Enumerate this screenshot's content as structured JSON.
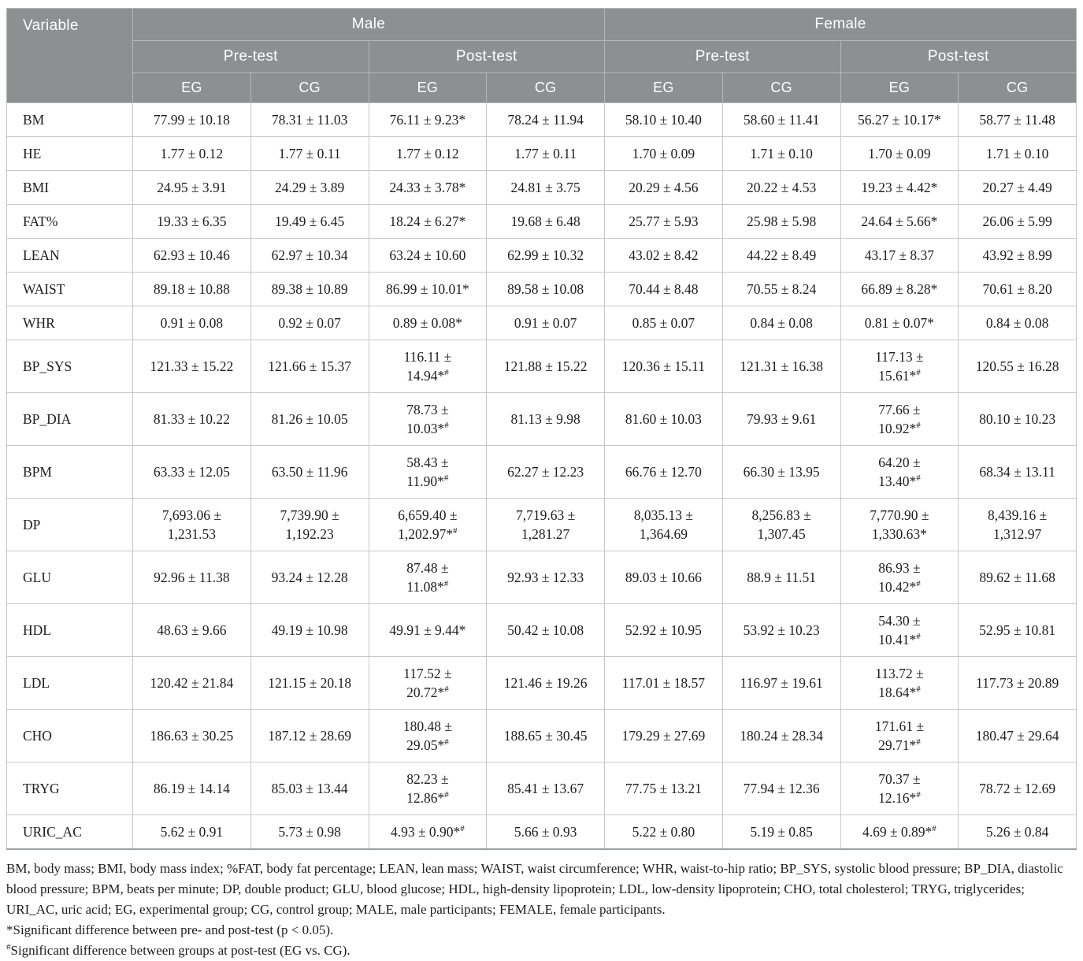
{
  "colors": {
    "header_bg": "#8c9091",
    "header_text": "#ffffff",
    "header_grid": "#b3b8b8",
    "grid_line": "#c6c8c8",
    "outer_line": "#9da0a0",
    "body_text": "#1d1d1d"
  },
  "table": {
    "header": {
      "variable_label": "Variable",
      "groups": [
        "Male",
        "Female"
      ],
      "subgroups": [
        "Pre-test",
        "Post-test"
      ],
      "columns": [
        "EG",
        "CG"
      ]
    },
    "rows": [
      {
        "label": "BM",
        "values": [
          "77.99 ± 10.18",
          "78.31 ± 11.03",
          "76.11 ± 9.23*",
          "78.24 ± 11.94",
          "58.10 ± 10.40",
          "58.60 ± 11.41",
          "56.27 ± 10.17*",
          "58.77 ± 11.48"
        ]
      },
      {
        "label": "HE",
        "values": [
          "1.77 ± 0.12",
          "1.77 ± 0.11",
          "1.77 ± 0.12",
          "1.77 ± 0.11",
          "1.70 ± 0.09",
          "1.71 ± 0.10",
          "1.70 ± 0.09",
          "1.71 ± 0.10"
        ]
      },
      {
        "label": "BMI",
        "values": [
          "24.95 ± 3.91",
          "24.29 ± 3.89",
          "24.33 ± 3.78*",
          "24.81 ± 3.75",
          "20.29 ± 4.56",
          "20.22 ± 4.53",
          "19.23 ± 4.42*",
          "20.27 ± 4.49"
        ]
      },
      {
        "label": "FAT%",
        "values": [
          "19.33 ± 6.35",
          "19.49 ± 6.45",
          "18.24 ± 6.27*",
          "19.68 ± 6.48",
          "25.77 ± 5.93",
          "25.98 ± 5.98",
          "24.64 ± 5.66*",
          "26.06 ± 5.99"
        ]
      },
      {
        "label": "LEAN",
        "values": [
          "62.93 ± 10.46",
          "62.97 ± 10.34",
          "63.24 ± 10.60",
          "62.99 ± 10.32",
          "43.02 ± 8.42",
          "44.22 ± 8.49",
          "43.17 ± 8.37",
          "43.92 ± 8.99"
        ]
      },
      {
        "label": "WAIST",
        "values": [
          "89.18 ± 10.88",
          "89.38 ± 10.89",
          "86.99 ± 10.01*",
          "89.58 ± 10.08",
          "70.44 ± 8.48",
          "70.55 ± 8.24",
          "66.89 ± 8.28*",
          "70.61 ± 8.20"
        ]
      },
      {
        "label": "WHR",
        "values": [
          "0.91 ± 0.08",
          "0.92 ± 0.07",
          "0.89 ± 0.08*",
          "0.91 ± 0.07",
          "0.85 ± 0.07",
          "0.84 ± 0.08",
          "0.81 ± 0.07*",
          "0.84 ± 0.08"
        ]
      },
      {
        "label": "BP_SYS",
        "values": [
          "121.33 ± 15.22",
          "121.66 ± 15.37",
          "116.11 ±\n14.94*#",
          "121.88 ± 15.22",
          "120.36 ± 15.11",
          "121.31 ± 16.38",
          "117.13 ±\n15.61*#",
          "120.55 ± 16.28"
        ]
      },
      {
        "label": "BP_DIA",
        "values": [
          "81.33 ± 10.22",
          "81.26 ± 10.05",
          "78.73 ±\n10.03*#",
          "81.13 ± 9.98",
          "81.60 ± 10.03",
          "79.93 ± 9.61",
          "77.66 ±\n10.92*#",
          "80.10 ± 10.23"
        ]
      },
      {
        "label": "BPM",
        "values": [
          "63.33 ± 12.05",
          "63.50 ± 11.96",
          "58.43 ±\n11.90*#",
          "62.27 ± 12.23",
          "66.76 ± 12.70",
          "66.30 ± 13.95",
          "64.20 ±\n13.40*#",
          "68.34 ± 13.11"
        ]
      },
      {
        "label": "DP",
        "values": [
          "7,693.06 ±\n1,231.53",
          "7,739.90 ±\n1,192.23",
          "6,659.40 ±\n1,202.97*#",
          "7,719.63 ±\n1,281.27",
          "8,035.13 ±\n1,364.69",
          "8,256.83 ±\n1,307.45",
          "7,770.90 ±\n1,330.63*",
          "8,439.16 ±\n1,312.97"
        ]
      },
      {
        "label": "GLU",
        "values": [
          "92.96 ± 11.38",
          "93.24 ± 12.28",
          "87.48 ±\n11.08*#",
          "92.93 ± 12.33",
          "89.03 ± 10.66",
          "88.9 ± 11.51",
          "86.93 ±\n10.42*#",
          "89.62 ± 11.68"
        ]
      },
      {
        "label": "HDL",
        "values": [
          "48.63 ± 9.66",
          "49.19 ± 10.98",
          "49.91 ± 9.44*",
          "50.42 ± 10.08",
          "52.92 ± 10.95",
          "53.92 ± 10.23",
          "54.30 ±\n10.41*#",
          "52.95 ± 10.81"
        ]
      },
      {
        "label": "LDL",
        "values": [
          "120.42 ± 21.84",
          "121.15 ± 20.18",
          "117.52 ±\n20.72*#",
          "121.46 ± 19.26",
          "117.01 ± 18.57",
          "116.97 ± 19.61",
          "113.72 ±\n18.64*#",
          "117.73 ± 20.89"
        ]
      },
      {
        "label": "CHO",
        "values": [
          "186.63 ± 30.25",
          "187.12 ± 28.69",
          "180.48 ±\n29.05*#",
          "188.65 ± 30.45",
          "179.29 ± 27.69",
          "180.24 ± 28.34",
          "171.61 ±\n29.71*#",
          "180.47 ± 29.64"
        ]
      },
      {
        "label": "TRYG",
        "values": [
          "86.19 ± 14.14",
          "85.03 ± 13.44",
          "82.23 ±\n12.86*#",
          "85.41 ± 13.67",
          "77.75 ± 13.21",
          "77.94 ± 12.36",
          "70.37 ±\n12.16*#",
          "78.72 ± 12.69"
        ]
      },
      {
        "label": "URIC_AC",
        "values": [
          "5.62 ± 0.91",
          "5.73 ± 0.98",
          "4.93 ± 0.90*#",
          "5.66 ± 0.93",
          "5.22 ± 0.80",
          "5.19 ± 0.85",
          "4.69 ± 0.89*#",
          "5.26 ± 0.84"
        ]
      }
    ]
  },
  "footnotes": {
    "abbreviations": "BM, body mass; BMI, body mass index; %FAT, body fat percentage; LEAN, lean mass; WAIST, waist circumference; WHR, waist-to-hip ratio; BP_SYS, systolic blood pressure; BP_DIA, diastolic blood pressure; BPM, beats per minute; DP, double product; GLU, blood glucose; HDL, high-density lipoprotein; LDL, low-density lipoprotein; CHO, total cholesterol; TRYG, triglycerides; URI_AC, uric acid; EG, experimental group; CG, control group; MALE, male participants; FEMALE, female participants.",
    "asterisk_note": "*Significant difference between pre- and post-test (p < 0.05).",
    "hash_note": "#Significant difference between groups at post-test (EG vs. CG)."
  }
}
